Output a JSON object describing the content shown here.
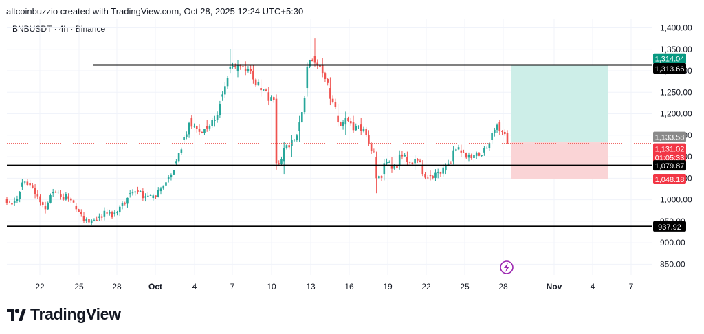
{
  "header": {
    "attribution": "altcoinbuzzio created with TradingView.com, Oct 28, 2025 12:24 UTC+5:30",
    "symbol_line": "BNBUSDT · 4h · Binance"
  },
  "brand": {
    "name": "TradingView"
  },
  "colors": {
    "up": "#26a69a",
    "down": "#ef5350",
    "level": "#000000",
    "target_zone": "#cdeee8",
    "stop_zone": "#fad4d6",
    "grid": "#f0f3fa",
    "axis_text": "#131722",
    "tag_gray": "#8a8a8a",
    "tag_green": "#089981",
    "tag_red": "#f23645",
    "icon_purple": "#9c27b0"
  },
  "chart_data": {
    "type": "candlestick",
    "symbol": "BNBUSDT",
    "interval": "4h",
    "exchange": "Binance",
    "ylim": [
      825,
      1420
    ],
    "y_ticks": [
      "1,400.00",
      "1,350.00",
      "1,300.00",
      "1,250.00",
      "1,200.00",
      "1,150.00",
      "1,100.00",
      "1,050.00",
      "1,000.00",
      "950.00",
      "900.00",
      "850.00"
    ],
    "x_ticks": [
      "22",
      "25",
      "28",
      "Oct",
      "4",
      "7",
      "10",
      "13",
      "16",
      "19",
      "22",
      "25",
      "28",
      "Nov",
      "4",
      "7"
    ],
    "ohlc_anchors": [
      [
        1001,
        1007,
        988,
        993
      ],
      [
        993,
        1005,
        985,
        997
      ],
      [
        1030,
        1048,
        1022,
        1040
      ],
      [
        1038,
        1046,
        1028,
        1034
      ],
      [
        1012,
        1022,
        1002,
        1008
      ],
      [
        985,
        995,
        968,
        978
      ],
      [
        1015,
        1025,
        1006,
        1018
      ],
      [
        1012,
        1022,
        1000,
        1006
      ],
      [
        1008,
        1015,
        995,
        1003
      ],
      [
        985,
        992,
        972,
        978
      ],
      [
        962,
        972,
        945,
        950
      ],
      [
        946,
        956,
        940,
        952
      ],
      [
        958,
        968,
        950,
        960
      ],
      [
        970,
        978,
        962,
        968
      ],
      [
        966,
        976,
        960,
        970
      ],
      [
        985,
        996,
        978,
        992
      ],
      [
        1012,
        1022,
        1005,
        1015
      ],
      [
        1022,
        1030,
        1012,
        1018
      ],
      [
        1005,
        1015,
        996,
        1008
      ],
      [
        1004,
        1014,
        998,
        1010
      ],
      [
        1020,
        1030,
        1012,
        1026
      ],
      [
        1048,
        1058,
        1040,
        1052
      ],
      [
        1085,
        1095,
        1078,
        1090
      ],
      [
        1140,
        1150,
        1130,
        1145
      ],
      [
        1190,
        1196,
        1165,
        1170
      ],
      [
        1165,
        1175,
        1150,
        1158
      ],
      [
        1172,
        1185,
        1158,
        1166
      ],
      [
        1185,
        1195,
        1170,
        1185
      ],
      [
        1240,
        1252,
        1230,
        1245
      ],
      [
        1305,
        1350,
        1295,
        1310
      ],
      [
        1300,
        1325,
        1285,
        1315
      ],
      [
        1305,
        1322,
        1290,
        1300
      ],
      [
        1300,
        1315,
        1270,
        1280
      ],
      [
        1260,
        1280,
        1240,
        1255
      ],
      [
        1250,
        1262,
        1220,
        1230
      ],
      [
        1235,
        1245,
        1070,
        1085
      ],
      [
        1090,
        1135,
        1060,
        1120
      ],
      [
        1125,
        1150,
        1100,
        1140
      ],
      [
        1160,
        1195,
        1135,
        1180
      ],
      [
        1260,
        1320,
        1240,
        1310
      ],
      [
        1335,
        1375,
        1310,
        1320
      ],
      [
        1315,
        1330,
        1285,
        1295
      ],
      [
        1260,
        1285,
        1220,
        1235
      ],
      [
        1195,
        1222,
        1170,
        1180
      ],
      [
        1175,
        1205,
        1150,
        1190
      ],
      [
        1180,
        1195,
        1155,
        1162
      ],
      [
        1175,
        1190,
        1150,
        1160
      ],
      [
        1150,
        1162,
        1125,
        1130
      ],
      [
        1100,
        1112,
        1015,
        1050
      ],
      [
        1060,
        1095,
        1045,
        1085
      ],
      [
        1080,
        1100,
        1062,
        1072
      ],
      [
        1080,
        1115,
        1070,
        1105
      ],
      [
        1100,
        1112,
        1080,
        1088
      ],
      [
        1085,
        1105,
        1070,
        1095
      ],
      [
        1080,
        1092,
        1055,
        1060
      ],
      [
        1058,
        1068,
        1045,
        1055
      ],
      [
        1062,
        1072,
        1050,
        1065
      ],
      [
        1068,
        1085,
        1060,
        1080
      ],
      [
        1090,
        1125,
        1082,
        1115
      ],
      [
        1115,
        1128,
        1100,
        1110
      ],
      [
        1098,
        1110,
        1090,
        1105
      ],
      [
        1102,
        1112,
        1094,
        1108
      ],
      [
        1110,
        1125,
        1102,
        1120
      ],
      [
        1140,
        1160,
        1130,
        1155
      ],
      [
        1180,
        1185,
        1150,
        1160
      ],
      [
        1155,
        1162,
        1130,
        1131
      ]
    ]
  },
  "levels": [
    {
      "price": 1313.66,
      "label": "1,313.66"
    },
    {
      "price": 1079.87,
      "label": "1,079.87"
    },
    {
      "price": 937.92,
      "label": "937.92"
    }
  ],
  "position_tool": {
    "target": 1314.04,
    "entry": 1133.58,
    "stop": 1048.18
  },
  "price_tags": {
    "target": "1,314.04",
    "level_top": "1,313.66",
    "entry": "1,133.58",
    "last_price": "1,131.02",
    "countdown": "01:05:33",
    "level_mid": "1,079.87",
    "stop": "1,048.18",
    "level_low": "937.92"
  },
  "icons": {
    "event_marker": "lightning-icon",
    "logo": "tradingview-logo-icon"
  }
}
